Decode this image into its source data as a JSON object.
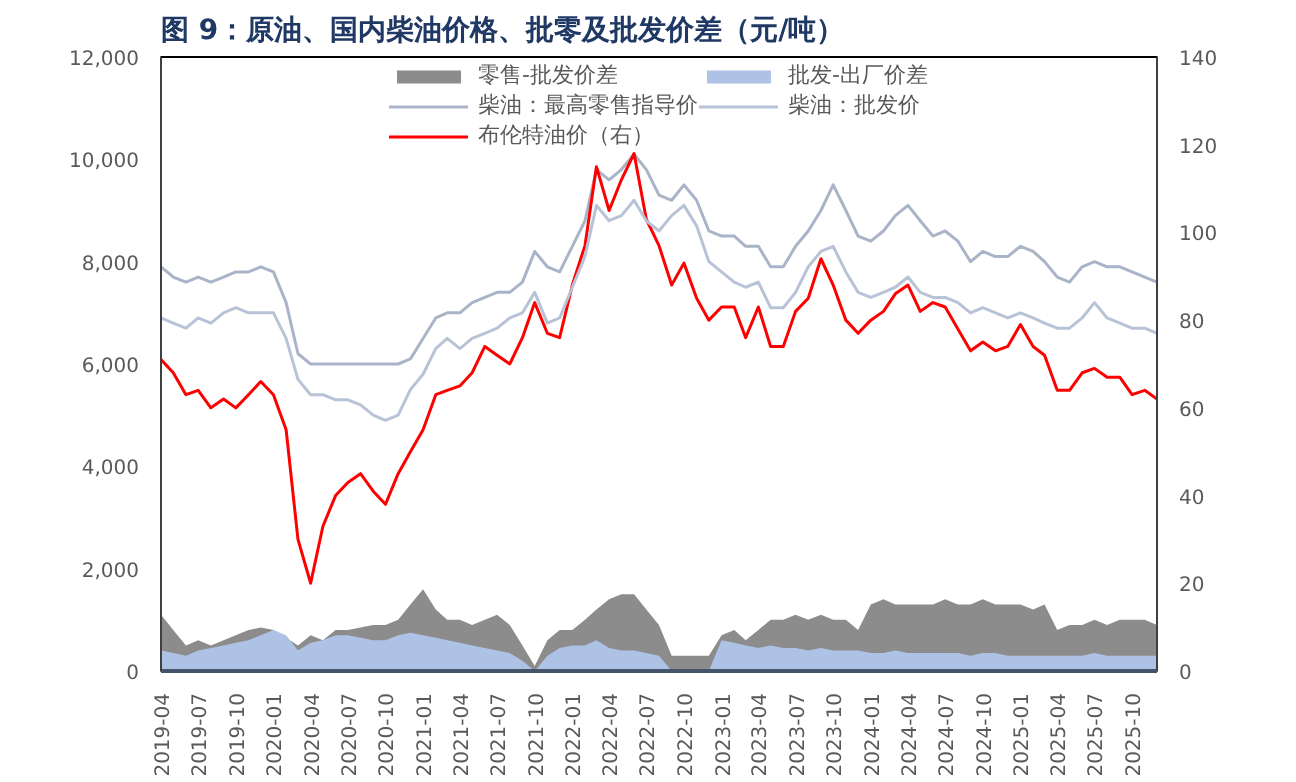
{
  "chart_data": {
    "type": "line",
    "title": "图 9：原油、国内柴油价格、批零及批发价差（元/吨）",
    "x": [
      "2019-04",
      "2019-05",
      "2019-06",
      "2019-07",
      "2019-08",
      "2019-09",
      "2019-10",
      "2019-11",
      "2019-12",
      "2020-01",
      "2020-02",
      "2020-03",
      "2020-04",
      "2020-05",
      "2020-06",
      "2020-07",
      "2020-08",
      "2020-09",
      "2020-10",
      "2020-11",
      "2020-12",
      "2021-01",
      "2021-02",
      "2021-03",
      "2021-04",
      "2021-05",
      "2021-06",
      "2021-07",
      "2021-08",
      "2021-09",
      "2021-10",
      "2021-11",
      "2021-12",
      "2022-01",
      "2022-02",
      "2022-03",
      "2022-04",
      "2022-05",
      "2022-06",
      "2022-07",
      "2022-08",
      "2022-09",
      "2022-10",
      "2022-11",
      "2022-12",
      "2023-01",
      "2023-02",
      "2023-03",
      "2023-04",
      "2023-05",
      "2023-06",
      "2023-07",
      "2023-08",
      "2023-09",
      "2023-10",
      "2023-11",
      "2023-12",
      "2024-01",
      "2024-02",
      "2024-03",
      "2024-04",
      "2024-05",
      "2024-06",
      "2024-07",
      "2024-08",
      "2024-09",
      "2024-10",
      "2024-11",
      "2024-12",
      "2025-01",
      "2025-02",
      "2025-03",
      "2025-04",
      "2025-05",
      "2025-06",
      "2025-07",
      "2025-08",
      "2025-09",
      "2025-10",
      "2025-11",
      "2025-12"
    ],
    "series": [
      {
        "name": "零售-批发价差",
        "type": "area",
        "color": "#8c8c8c",
        "values": [
          1100,
          800,
          500,
          600,
          500,
          600,
          700,
          800,
          850,
          800,
          650,
          500,
          700,
          600,
          800,
          800,
          850,
          900,
          900,
          1000,
          1300,
          1600,
          1200,
          1000,
          1000,
          900,
          1000,
          1100,
          900,
          500,
          100,
          600,
          800,
          800,
          1000,
          1200,
          1400,
          1500,
          1500,
          1200,
          900,
          300,
          300,
          300,
          300,
          700,
          800,
          600,
          800,
          1000,
          1000,
          1100,
          1000,
          1100,
          1000,
          1000,
          800,
          1300,
          1400,
          1300,
          1300,
          1300,
          1300,
          1400,
          1300,
          1300,
          1400,
          1300,
          1300,
          1300,
          1200,
          1300,
          800,
          900,
          900,
          1000,
          900,
          1000,
          1000,
          1000,
          900
        ]
      },
      {
        "name": "柴油：最高零售指导价",
        "color": "#a9b4c8",
        "values": [
          7900,
          7700,
          7600,
          7700,
          7600,
          7700,
          7800,
          7800,
          7900,
          7800,
          7200,
          6200,
          6000,
          6000,
          6000,
          6000,
          6000,
          6000,
          6000,
          6000,
          6100,
          6500,
          6900,
          7000,
          7000,
          7200,
          7300,
          7400,
          7400,
          7600,
          8200,
          7900,
          7800,
          8300,
          8800,
          9800,
          9600,
          9800,
          10100,
          9800,
          9300,
          9200,
          9500,
          9200,
          8600,
          8500,
          8500,
          8300,
          8300,
          7900,
          7900,
          8300,
          8600,
          9000,
          9500,
          9000,
          8500,
          8400,
          8600,
          8900,
          9100,
          8800,
          8500,
          8600,
          8400,
          8000,
          8200,
          8100,
          8100,
          8300,
          8200,
          8000,
          7700,
          7600,
          7900,
          8000,
          7900,
          7900,
          7800,
          7700,
          7600
        ]
      },
      {
        "name": "布伦特油价（右）",
        "axis": "y2",
        "color": "#ff0000",
        "values": [
          71,
          68,
          63,
          64,
          60,
          62,
          60,
          63,
          66,
          63,
          55,
          30,
          20,
          33,
          40,
          43,
          45,
          41,
          38,
          45,
          50,
          55,
          63,
          64,
          65,
          68,
          74,
          72,
          70,
          76,
          84,
          77,
          76,
          88,
          97,
          115,
          105,
          112,
          118,
          103,
          97,
          88,
          93,
          85,
          80,
          83,
          83,
          76,
          83,
          74,
          74,
          82,
          85,
          94,
          88,
          80,
          77,
          80,
          82,
          86,
          88,
          82,
          84,
          83,
          78,
          73,
          75,
          73,
          74,
          79,
          74,
          72,
          64,
          64,
          68,
          69,
          67,
          67,
          63,
          64,
          62
        ]
      },
      {
        "name": "批发-出厂价差",
        "type": "area",
        "color": "#aec2e6",
        "values": [
          400,
          350,
          300,
          400,
          450,
          500,
          550,
          600,
          700,
          800,
          700,
          400,
          550,
          600,
          700,
          700,
          650,
          600,
          600,
          700,
          750,
          700,
          650,
          600,
          550,
          500,
          450,
          400,
          350,
          200,
          0,
          300,
          450,
          500,
          500,
          600,
          450,
          400,
          400,
          350,
          300,
          0,
          0,
          0,
          0,
          600,
          550,
          500,
          450,
          500,
          450,
          450,
          400,
          450,
          400,
          400,
          400,
          350,
          350,
          400,
          350,
          350,
          350,
          350,
          350,
          300,
          350,
          350,
          300,
          300,
          300,
          300,
          300,
          300,
          300,
          350,
          300,
          300,
          300,
          300,
          300
        ]
      },
      {
        "name": "柴油：批发价",
        "color": "#b8c3d8",
        "values": [
          6900,
          6800,
          6700,
          6900,
          6800,
          7000,
          7100,
          7000,
          7000,
          7000,
          6500,
          5700,
          5400,
          5400,
          5300,
          5300,
          5200,
          5000,
          4900,
          5000,
          5500,
          5800,
          6300,
          6500,
          6300,
          6500,
          6600,
          6700,
          6900,
          7000,
          7400,
          6800,
          6900,
          7500,
          8100,
          9100,
          8800,
          8900,
          9200,
          8800,
          8600,
          8900,
          9100,
          8700,
          8000,
          7800,
          7600,
          7500,
          7600,
          7100,
          7100,
          7400,
          7900,
          8200,
          8300,
          7800,
          7400,
          7300,
          7400,
          7500,
          7700,
          7400,
          7300,
          7300,
          7200,
          7000,
          7100,
          7000,
          6900,
          7000,
          6900,
          6800,
          6700,
          6700,
          6900,
          7200,
          6900,
          6800,
          6700,
          6700,
          6600
        ]
      }
    ],
    "xlim": [
      "2019-04",
      "2025-12"
    ],
    "xticks": [
      "2019-04",
      "2019-07",
      "2019-10",
      "2020-01",
      "2020-04",
      "2020-07",
      "2020-10",
      "2021-01",
      "2021-04",
      "2021-07",
      "2021-10",
      "2022-01",
      "2022-04",
      "2022-07",
      "2022-10",
      "2023-01",
      "2023-04",
      "2023-07",
      "2023-10",
      "2024-01",
      "2024-04",
      "2024-07",
      "2024-10",
      "2025-01",
      "2025-04",
      "2025-07",
      "2025-10"
    ],
    "ylim": [
      0,
      12000
    ],
    "yticks": [
      {
        "value": 0,
        "label": "0"
      },
      {
        "value": 2000,
        "label": "2,000"
      },
      {
        "value": 4000,
        "label": "4,000"
      },
      {
        "value": 6000,
        "label": "6,000"
      },
      {
        "value": 8000,
        "label": "8,000"
      },
      {
        "value": 10000,
        "label": "10,000"
      },
      {
        "value": 12000,
        "label": "12,000"
      }
    ],
    "y2lim": [
      0,
      140
    ],
    "y2ticks": [
      0,
      20,
      40,
      60,
      80,
      100,
      120,
      140
    ],
    "legend": "top",
    "grid": false
  }
}
